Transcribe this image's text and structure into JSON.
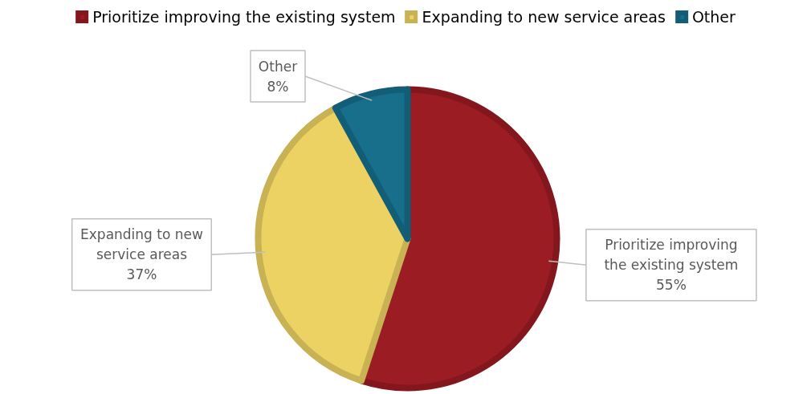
{
  "chart_data": {
    "type": "pie",
    "categories": [
      "Prioritize improving the existing system",
      "Expanding to new service areas",
      "Other"
    ],
    "values": [
      55,
      37,
      8
    ],
    "colors": [
      "#9c1c23",
      "#ecd263",
      "#176f8c"
    ],
    "value_labels": [
      "55%",
      "37%",
      "8%"
    ],
    "legend": "top"
  }
}
